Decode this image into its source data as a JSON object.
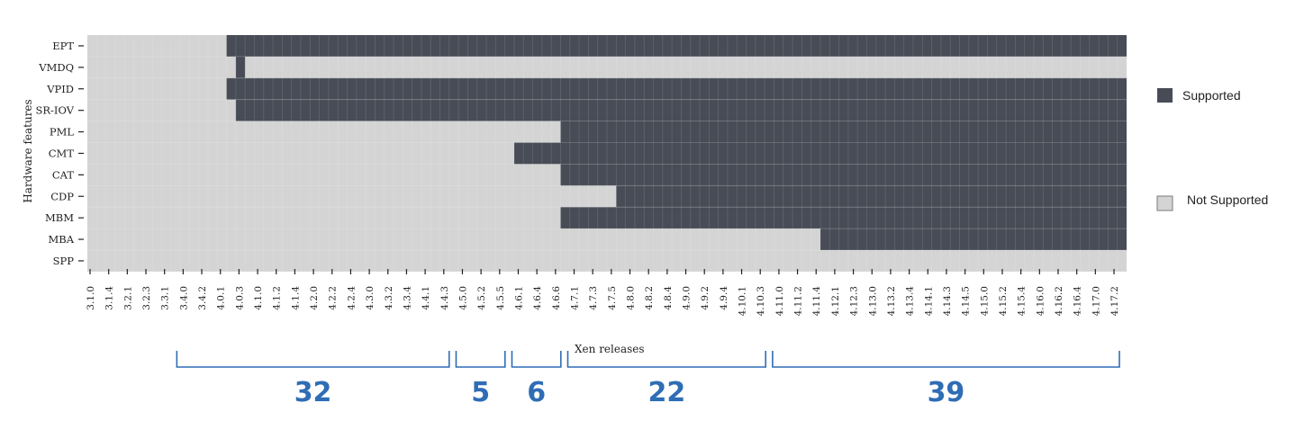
{
  "chart_data": {
    "type": "heatmap",
    "ylabel": "Hardware features",
    "xlabel": "Xen releases",
    "features": [
      "EPT",
      "VMDQ",
      "VPID",
      "SR-IOV",
      "PML",
      "CMT",
      "CAT",
      "CDP",
      "MBM",
      "MBA",
      "SPP"
    ],
    "x_tick_labels": [
      "3.1.0",
      "3.1.4",
      "3.2.1",
      "3.2.3",
      "3.3.1",
      "3.4.0",
      "3.4.2",
      "4.0.1",
      "4.0.3",
      "4.1.0",
      "4.1.2",
      "4.1.4",
      "4.2.0",
      "4.2.2",
      "4.2.4",
      "4.3.0",
      "4.3.2",
      "4.3.4",
      "4.4.1",
      "4.4.3",
      "4.5.0",
      "4.5.2",
      "4.5.5",
      "4.6.1",
      "4.6.4",
      "4.6.6",
      "4.7.1",
      "4.7.3",
      "4.7.5",
      "4.8.0",
      "4.8.2",
      "4.8.4",
      "4.9.0",
      "4.9.2",
      "4.9.4",
      "4.10.1",
      "4.10.3",
      "4.11.0",
      "4.11.2",
      "4.11.4",
      "4.12.1",
      "4.12.3",
      "4.13.0",
      "4.13.2",
      "4.13.4",
      "4.14.1",
      "4.14.3",
      "4.14.5",
      "4.15.0",
      "4.15.2",
      "4.15.4",
      "4.16.0",
      "4.16.2",
      "4.16.4",
      "4.17.0",
      "4.17.2"
    ],
    "release_count": 112,
    "support_ranges": {
      "EPT": [
        [
          15,
          111
        ]
      ],
      "VMDQ": [
        [
          16,
          16
        ]
      ],
      "VPID": [
        [
          15,
          111
        ]
      ],
      "SR-IOV": [
        [
          16,
          111
        ]
      ],
      "PML": [
        [
          51,
          111
        ]
      ],
      "CMT": [
        [
          46,
          111
        ]
      ],
      "CAT": [
        [
          51,
          111
        ]
      ],
      "CDP": [
        [
          57,
          111
        ]
      ],
      "MBM": [
        [
          51,
          111
        ]
      ],
      "MBA": [
        [
          79,
          111
        ]
      ],
      "SPP": []
    },
    "legend": [
      {
        "label": "Supported",
        "color": "#474c56"
      },
      {
        "label": "Not Supported",
        "color": "#d4d4d4"
      }
    ],
    "legend_position": "right",
    "annotations": [
      {
        "label": "32",
        "from_tick": "3.4.0",
        "to_tick": "4.4.3"
      },
      {
        "label": "5",
        "from_tick": "4.5.0",
        "to_tick": "4.5.5"
      },
      {
        "label": "6",
        "from_tick": "4.6.1",
        "to_tick": "4.6.6"
      },
      {
        "label": "22",
        "from_tick": "4.7.1",
        "to_tick": "4.10.3"
      },
      {
        "label": "39",
        "from_tick": "4.11.0",
        "to_tick": "4.17.2"
      }
    ],
    "colors": {
      "supported": "#474c56",
      "not_supported": "#d4d4d4",
      "annotation": "#2f6db5"
    }
  }
}
